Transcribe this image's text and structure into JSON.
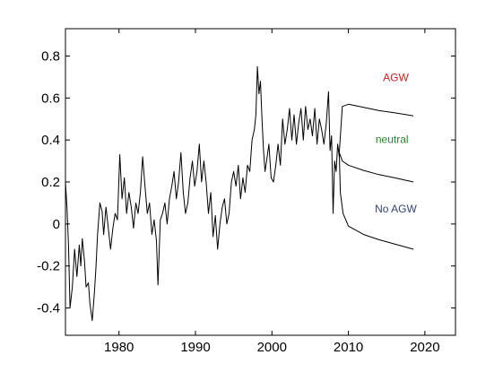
{
  "chart_data": {
    "type": "line",
    "title": "",
    "xlabel": "",
    "ylabel": "",
    "xlim": [
      1973,
      2024
    ],
    "ylim": [
      -0.53,
      0.93
    ],
    "xticks": [
      1980,
      1990,
      2000,
      2010,
      2020
    ],
    "xtick_labels": [
      "1980",
      "1990",
      "2000",
      "2010",
      "2020"
    ],
    "yticks": [
      -0.4,
      -0.2,
      0,
      0.2,
      0.4,
      0.6,
      0.8
    ],
    "ytick_labels": [
      "-0.4",
      "-0.2",
      "0",
      "0.2",
      "0.4",
      "0.6",
      "0.8"
    ],
    "grid": false,
    "observed": {
      "x": [
        1973.0,
        1973.2,
        1973.4,
        1973.6,
        1973.9,
        1974.2,
        1974.5,
        1974.8,
        1975.0,
        1975.2,
        1975.5,
        1975.7,
        1976.0,
        1976.2,
        1976.5,
        1976.8,
        1977.0,
        1977.2,
        1977.5,
        1977.8,
        1978.0,
        1978.3,
        1978.6,
        1978.9,
        1979.2,
        1979.5,
        1979.8,
        1980.1,
        1980.4,
        1980.7,
        1981.0,
        1981.3,
        1981.6,
        1981.9,
        1982.2,
        1982.5,
        1982.8,
        1983.1,
        1983.4,
        1983.7,
        1984.0,
        1984.3,
        1984.6,
        1984.9,
        1985.1,
        1985.4,
        1985.7,
        1986.0,
        1986.3,
        1986.6,
        1986.9,
        1987.2,
        1987.5,
        1987.8,
        1988.1,
        1988.4,
        1988.7,
        1989.0,
        1989.3,
        1989.6,
        1989.9,
        1990.2,
        1990.5,
        1990.8,
        1991.1,
        1991.4,
        1991.7,
        1992.0,
        1992.3,
        1992.6,
        1992.9,
        1993.2,
        1993.5,
        1993.8,
        1994.1,
        1994.4,
        1994.7,
        1995.0,
        1995.3,
        1995.6,
        1995.9,
        1996.2,
        1996.5,
        1996.8,
        1997.1,
        1997.4,
        1997.7,
        1997.9,
        1998.1,
        1998.3,
        1998.5,
        1998.7,
        1998.9,
        1999.1,
        1999.3,
        1999.6,
        1999.9,
        2000.2,
        2000.5,
        2000.8,
        2001.1,
        2001.4,
        2001.7,
        2002.0,
        2002.3,
        2002.6,
        2002.9,
        2003.2,
        2003.5,
        2003.8,
        2004.1,
        2004.4,
        2004.7,
        2005.0,
        2005.3,
        2005.6,
        2005.9,
        2006.2,
        2006.5,
        2006.8,
        2007.1,
        2007.4,
        2007.6,
        2007.8,
        2008.0,
        2008.2,
        2008.4,
        2008.6,
        2008.8
      ],
      "y": [
        0.2,
        0.08,
        -0.1,
        -0.4,
        -0.3,
        -0.12,
        -0.25,
        -0.1,
        -0.2,
        -0.07,
        -0.18,
        -0.3,
        -0.28,
        -0.38,
        -0.46,
        -0.32,
        -0.2,
        -0.05,
        0.1,
        0.06,
        -0.05,
        0.08,
        -0.02,
        -0.12,
        -0.02,
        0.05,
        0.02,
        0.33,
        0.12,
        0.22,
        0.05,
        0.15,
        0.08,
        -0.02,
        0.1,
        0.05,
        0.15,
        0.32,
        0.18,
        0.05,
        0.1,
        -0.05,
        0.02,
        -0.08,
        -0.29,
        0.02,
        0.05,
        0.1,
        0.0,
        0.12,
        0.18,
        0.25,
        0.12,
        0.2,
        0.34,
        0.15,
        0.05,
        0.1,
        0.22,
        0.3,
        0.18,
        0.25,
        0.38,
        0.2,
        0.3,
        0.2,
        0.05,
        0.15,
        -0.06,
        0.04,
        -0.12,
        0.0,
        0.08,
        0.12,
        0.0,
        0.05,
        0.2,
        0.25,
        0.18,
        0.28,
        0.12,
        0.22,
        0.15,
        0.28,
        0.25,
        0.4,
        0.45,
        0.52,
        0.75,
        0.62,
        0.68,
        0.5,
        0.35,
        0.25,
        0.3,
        0.38,
        0.22,
        0.2,
        0.28,
        0.38,
        0.28,
        0.5,
        0.38,
        0.45,
        0.55,
        0.4,
        0.52,
        0.38,
        0.48,
        0.55,
        0.4,
        0.56,
        0.45,
        0.5,
        0.42,
        0.55,
        0.38,
        0.5,
        0.45,
        0.38,
        0.48,
        0.63,
        0.35,
        0.42,
        0.05,
        0.3,
        0.25,
        0.38,
        0.32
      ]
    },
    "scenarios": [
      {
        "label": "AGW",
        "color": "#cc2222",
        "x": [
          2008.8,
          2009.2,
          2010,
          2012,
          2014,
          2016,
          2018.5
        ],
        "y": [
          0.34,
          0.56,
          0.57,
          0.555,
          0.54,
          0.53,
          0.515
        ]
      },
      {
        "label": "neutral",
        "color": "#228822",
        "x": [
          2008.8,
          2009.2,
          2010,
          2012,
          2014,
          2016,
          2018.5
        ],
        "y": [
          0.34,
          0.3,
          0.28,
          0.255,
          0.235,
          0.22,
          0.2
        ]
      },
      {
        "label": "No AGW",
        "color": "#334477",
        "x": [
          2008.8,
          2008.95,
          2009.3,
          2010,
          2012,
          2014,
          2016,
          2018.5
        ],
        "y": [
          0.34,
          0.15,
          0.05,
          -0.01,
          -0.05,
          -0.075,
          -0.095,
          -0.12
        ]
      }
    ]
  }
}
